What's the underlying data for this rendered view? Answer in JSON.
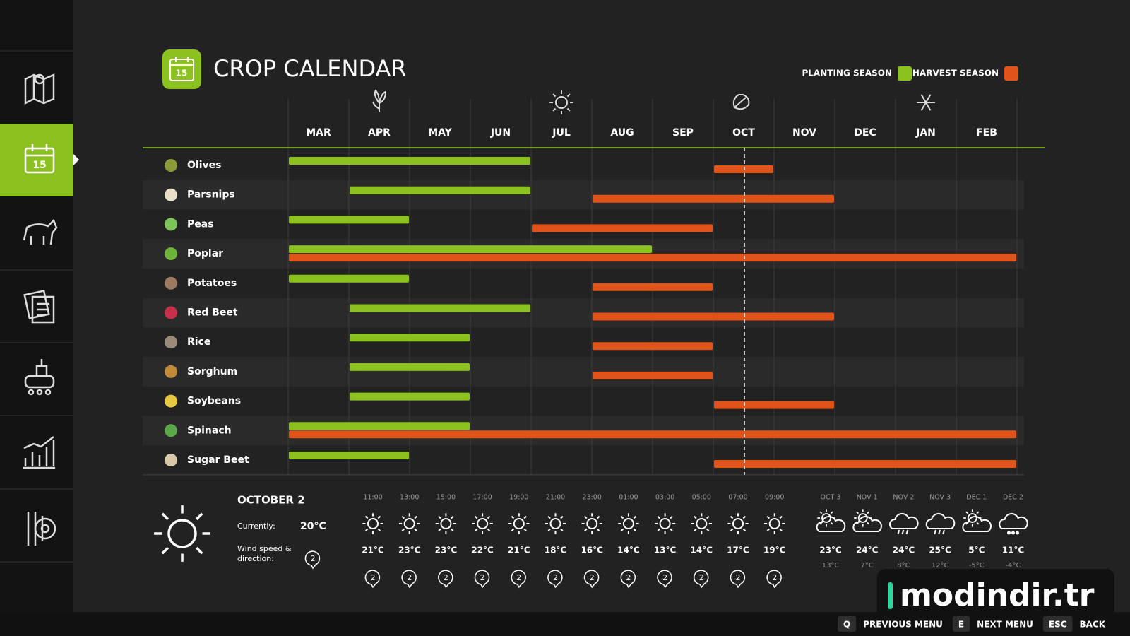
{
  "header": {
    "title": "CROP CALENDAR",
    "icon_label": "15"
  },
  "legend": {
    "planting": "PLANTING SEASON",
    "harvest": "HARVEST SEASON",
    "planting_color": "#8cc21f",
    "harvest_color": "#e0541a"
  },
  "calendar": {
    "months": [
      "MAR",
      "APR",
      "MAY",
      "JUN",
      "JUL",
      "AUG",
      "SEP",
      "OCT",
      "NOV",
      "DEC",
      "JAN",
      "FEB"
    ],
    "crops": [
      {
        "name": "Olives",
        "planting": [
          0,
          4
        ],
        "harvest": [
          7,
          8
        ]
      },
      {
        "name": "Parsnips",
        "planting": [
          1,
          4
        ],
        "harvest": [
          5,
          9
        ]
      },
      {
        "name": "Peas",
        "planting": [
          0,
          2
        ],
        "harvest": [
          4,
          7
        ]
      },
      {
        "name": "Poplar",
        "planting": [
          0,
          6
        ],
        "harvest": [
          0,
          12
        ]
      },
      {
        "name": "Potatoes",
        "planting": [
          0,
          2
        ],
        "harvest": [
          5,
          7
        ]
      },
      {
        "name": "Red Beet",
        "planting": [
          1,
          4
        ],
        "harvest": [
          5,
          9
        ]
      },
      {
        "name": "Rice",
        "planting": [
          1,
          3
        ],
        "harvest": [
          5,
          7
        ]
      },
      {
        "name": "Sorghum",
        "planting": [
          1,
          3
        ],
        "harvest": [
          5,
          7
        ]
      },
      {
        "name": "Soybeans",
        "planting": [
          1,
          3
        ],
        "harvest": [
          7,
          9
        ]
      },
      {
        "name": "Spinach",
        "planting": [
          0,
          3
        ],
        "harvest": [
          0,
          12
        ]
      },
      {
        "name": "Sugar Beet",
        "planting": [
          0,
          2
        ],
        "harvest": [
          7,
          12
        ]
      }
    ]
  },
  "weather": {
    "date": "OCTOBER 2",
    "current_label": "Currently:",
    "current_temp": "20°C",
    "wind_label": [
      "Wind speed &",
      "direction:"
    ],
    "wind": "2",
    "hourly": [
      {
        "time": "11:00",
        "temp": "21°C",
        "wind": "2"
      },
      {
        "time": "13:00",
        "temp": "23°C",
        "wind": "2"
      },
      {
        "time": "15:00",
        "temp": "23°C",
        "wind": "2"
      },
      {
        "time": "17:00",
        "temp": "22°C",
        "wind": "2"
      },
      {
        "time": "19:00",
        "temp": "21°C",
        "wind": "2"
      },
      {
        "time": "21:00",
        "temp": "18°C",
        "wind": "2"
      },
      {
        "time": "23:00",
        "temp": "16°C",
        "wind": "2"
      },
      {
        "time": "01:00",
        "temp": "14°C",
        "wind": "2"
      },
      {
        "time": "03:00",
        "temp": "13°C",
        "wind": "2"
      },
      {
        "time": "05:00",
        "temp": "14°C",
        "wind": "2"
      },
      {
        "time": "07:00",
        "temp": "17°C",
        "wind": "2"
      },
      {
        "time": "09:00",
        "temp": "19°C",
        "wind": "2"
      }
    ],
    "daily": [
      {
        "date": "OCT 3",
        "high": "23°C",
        "low": "13°C"
      },
      {
        "date": "NOV 1",
        "high": "24°C",
        "low": "7°C"
      },
      {
        "date": "NOV 2",
        "high": "24°C",
        "low": "8°C"
      },
      {
        "date": "NOV 3",
        "high": "25°C",
        "low": "12°C"
      },
      {
        "date": "DEC 1",
        "high": "5°C",
        "low": "-5°C"
      },
      {
        "date": "DEC 2",
        "high": "11°C",
        "low": "-4°C"
      }
    ]
  },
  "footer": {
    "keys": [
      {
        "key": "Q",
        "label": "PREVIOUS MENU"
      },
      {
        "key": "E",
        "label": "NEXT MENU"
      },
      {
        "key": "ESC",
        "label": "BACK"
      }
    ]
  },
  "watermark": "modindir.tr"
}
